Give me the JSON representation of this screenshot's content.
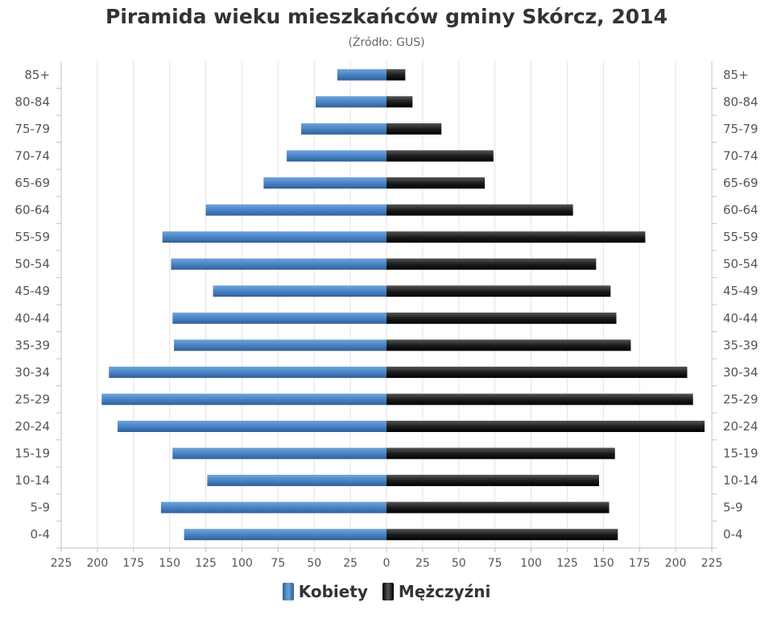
{
  "chart_data": {
    "type": "bar",
    "orientation": "horizontal",
    "title": "Piramida wieku mieszkańców gminy Skórcz, 2014",
    "subtitle": "(Źródło: GUS)",
    "categories": [
      "85+",
      "80-84",
      "75-79",
      "70-74",
      "65-69",
      "60-64",
      "55-59",
      "50-54",
      "45-49",
      "40-44",
      "35-39",
      "30-34",
      "25-29",
      "20-24",
      "15-19",
      "10-14",
      "5-9",
      "0-4"
    ],
    "series": [
      {
        "name": "Kobiety",
        "color": "#4a84c4",
        "values": [
          34,
          49,
          59,
          69,
          85,
          125,
          155,
          149,
          120,
          148,
          147,
          192,
          197,
          186,
          148,
          124,
          156,
          140
        ]
      },
      {
        "name": "Mężczyźni",
        "color": "#1e1e1e",
        "values": [
          13,
          18,
          38,
          74,
          68,
          129,
          179,
          145,
          155,
          159,
          169,
          208,
          212,
          220,
          158,
          147,
          154,
          160
        ]
      }
    ],
    "x_ticks": [
      "225",
      "200",
      "175",
      "150",
      "125",
      "100",
      "75",
      "50",
      "25",
      "0",
      "25",
      "50",
      "75",
      "100",
      "125",
      "150",
      "175",
      "200",
      "225"
    ],
    "xlim": [
      -225,
      225
    ],
    "grid": true,
    "legend_position": "bottom"
  }
}
